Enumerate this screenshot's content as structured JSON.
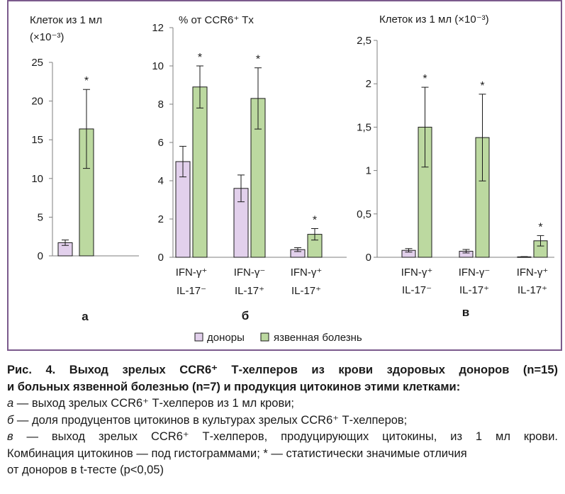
{
  "figure": {
    "legend": [
      {
        "label": "доноры",
        "color": "#e2d0ec"
      },
      {
        "label": "язвенная болезнь",
        "color": "#bcd9a0"
      }
    ],
    "colors": {
      "frame": "#7b5a8c",
      "donor": "#e2d0ec",
      "ulcer": "#bcd9a0",
      "bar_stroke": "#1a1a1a"
    }
  },
  "chart_data": [
    {
      "type": "bar",
      "panel_letter": "а",
      "ylabel_lines": [
        "Клеток из 1 мл",
        "(×10⁻³)"
      ],
      "ylim": [
        0,
        25
      ],
      "yticks": [
        0,
        5,
        10,
        15,
        20,
        25
      ],
      "ytick_labels": [
        "0",
        "5",
        "10",
        "15",
        "20",
        "25"
      ],
      "categories": [
        ""
      ],
      "series": [
        {
          "name": "доноры",
          "values": [
            1.7
          ],
          "err": [
            0.35
          ]
        },
        {
          "name": "язвенная болезнь",
          "values": [
            16.4
          ],
          "err": [
            5.1
          ]
        }
      ],
      "significance": [
        [
          false,
          true
        ]
      ],
      "asterisk": "*"
    },
    {
      "type": "bar",
      "panel_letter": "б",
      "ylabel_lines": [
        "% от CCR6⁺ Tх"
      ],
      "ylim": [
        0,
        12
      ],
      "yticks": [
        0,
        2,
        4,
        6,
        8,
        10,
        12
      ],
      "ytick_labels": [
        "0",
        "2",
        "4",
        "6",
        "8",
        "10",
        "12"
      ],
      "categories": [
        {
          "line1": "IFN-γ⁺",
          "line2": "IL-17⁻"
        },
        {
          "line1": "IFN-γ⁻",
          "line2": "IL-17⁺"
        },
        {
          "line1": "IFN-γ⁺",
          "line2": "IL-17⁺"
        }
      ],
      "series": [
        {
          "name": "доноры",
          "values": [
            5.0,
            3.6,
            0.4
          ],
          "err": [
            0.8,
            0.7,
            0.1
          ]
        },
        {
          "name": "язвенная болезнь",
          "values": [
            8.9,
            8.3,
            1.2
          ],
          "err": [
            1.1,
            1.6,
            0.3
          ]
        }
      ],
      "significance": [
        [
          false,
          true
        ],
        [
          false,
          true
        ],
        [
          false,
          true
        ]
      ],
      "asterisk": "*"
    },
    {
      "type": "bar",
      "panel_letter": "в",
      "ylabel_lines": [
        "Клеток из 1 мл (×10⁻³)"
      ],
      "ylim": [
        0,
        2.5
      ],
      "yticks": [
        0,
        0.5,
        1,
        1.5,
        2,
        2.5
      ],
      "ytick_labels": [
        "0",
        "0,5",
        "1",
        "1,5",
        "2",
        "2,5"
      ],
      "categories": [
        {
          "line1": "IFN-γ⁺",
          "line2": "IL-17⁻"
        },
        {
          "line1": "IFN-γ⁻",
          "line2": "IL-17⁺"
        },
        {
          "line1": "IFN-γ⁺",
          "line2": "IL-17⁺"
        }
      ],
      "series": [
        {
          "name": "доноры",
          "values": [
            0.08,
            0.07,
            0.005
          ],
          "err": [
            0.02,
            0.02,
            0.003
          ]
        },
        {
          "name": "язвенная болезнь",
          "values": [
            1.5,
            1.38,
            0.19
          ],
          "err": [
            0.46,
            0.5,
            0.06
          ]
        }
      ],
      "significance": [
        [
          false,
          true
        ],
        [
          false,
          true
        ],
        [
          false,
          true
        ]
      ],
      "asterisk": "*"
    }
  ],
  "caption": {
    "title_line1": "Рис. 4. Выход зрелых CCR6⁺ Т-хелперов из крови здоровых доноров (n=15)",
    "title_line2": "и больных язвенной болезнью (n=7) и продукция цитокинов этими клетками:",
    "a_letter": "а",
    "a_text": " — выход зрелых CCR6⁺ Т-хелперов из 1 мл крови;",
    "b_letter": "б",
    "b_text": " — доля продуцентов цитокинов в культурах зрелых CCR6⁺ Т-хелперов;",
    "c_letter": "в",
    "c_text": " — выход зрелых CCR6⁺ Т-хелперов, продуцирующих цитокины, из 1 мл крови.",
    "line6": "Комбинация цитокинов — под гистограммами; * — статистически значимые отличия",
    "line7": "от доноров в t-тесте (p<0,05)"
  }
}
